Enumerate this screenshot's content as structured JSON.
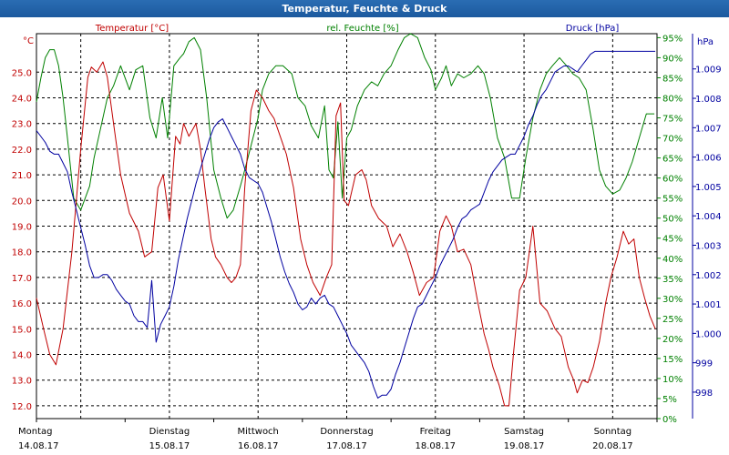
{
  "window_title": "Temperatur, Feuchte & Druck",
  "chart_data": {
    "type": "line",
    "title": "Temperatur, Feuchte & Druck",
    "grid": true,
    "x": {
      "range": [
        "14.08.17 00:00",
        "20.08.17 23:59"
      ],
      "tick_labels": [
        {
          "day": "Montag",
          "date": "14.08.17"
        },
        {
          "day": "Dienstag",
          "date": "15.08.17"
        },
        {
          "day": "Mittwoch",
          "date": "16.08.17"
        },
        {
          "day": "Donnerstag",
          "date": "17.08.17"
        },
        {
          "day": "Freitag",
          "date": "18.08.17"
        },
        {
          "day": "Samstag",
          "date": "19.08.17"
        },
        {
          "day": "Sonntag",
          "date": "20.08.17"
        }
      ]
    },
    "axes": {
      "temperature": {
        "label": "Temperatur [°C]",
        "unit": "°C",
        "range": [
          11.5,
          26.5
        ],
        "ticks": [
          "12.0",
          "13.0",
          "14.0",
          "15.0",
          "16.0",
          "17.0",
          "18.0",
          "19.0",
          "20.0",
          "21.0",
          "22.0",
          "23.0",
          "24.0",
          "25.0"
        ],
        "color": "#c00000"
      },
      "humidity": {
        "label": "rel. Feuchte [%]",
        "unit": "%",
        "range": [
          0,
          96
        ],
        "ticks": [
          "0",
          "5",
          "10",
          "15",
          "20",
          "25",
          "30",
          "35",
          "40",
          "45",
          "50",
          "55",
          "60",
          "65",
          "70",
          "75",
          "80",
          "85",
          "90",
          "95"
        ],
        "tick_suffix": "%",
        "color": "#008000"
      },
      "pressure": {
        "label": "Druck [hPa]",
        "unit": "hPa",
        "range": [
          997.1,
          1010.2
        ],
        "ticks": [
          "998",
          "999",
          "1.000",
          "1.001",
          "1.002",
          "1.003",
          "1.004",
          "1.005",
          "1.006",
          "1.007",
          "1.008",
          "1.009"
        ],
        "color": "#0000a0"
      }
    },
    "series": [
      {
        "name": "Temperatur [°C]",
        "axis": "temperature",
        "color": "#c00000",
        "x_days": [
          0,
          0.08,
          0.15,
          0.22,
          0.3,
          0.4,
          0.5,
          0.58,
          0.62,
          0.68,
          0.75,
          0.8,
          0.87,
          0.95,
          1.05,
          1.15,
          1.22,
          1.3,
          1.37,
          1.43,
          1.5,
          1.57,
          1.62,
          1.66,
          1.72,
          1.8,
          1.85,
          1.9,
          1.97,
          2.02,
          2.08,
          2.15,
          2.2,
          2.25,
          2.3,
          2.35,
          2.42,
          2.48,
          2.55,
          2.62,
          2.68,
          2.75,
          2.82,
          2.9,
          2.98,
          3.05,
          3.12,
          3.2,
          3.27,
          3.33,
          3.38,
          3.43,
          3.47,
          3.52,
          3.6,
          3.67,
          3.72,
          3.78,
          3.86,
          3.95,
          4.02,
          4.1,
          4.18,
          4.25,
          4.32,
          4.4,
          4.48,
          4.55,
          4.62,
          4.68,
          4.75,
          4.82,
          4.9,
          4.98,
          5.05,
          5.1,
          5.15,
          5.22,
          5.28,
          5.33,
          5.38,
          5.45,
          5.52,
          5.6,
          5.68,
          5.76,
          5.85,
          5.92,
          6.0,
          6.06,
          6.1,
          6.16,
          6.22,
          6.28,
          6.35,
          6.42,
          6.48,
          6.55,
          6.62,
          6.68,
          6.74,
          6.8,
          6.86,
          6.92,
          6.98
        ],
        "values": [
          16.2,
          15.0,
          14.0,
          13.6,
          15.0,
          18.0,
          22.0,
          24.8,
          25.2,
          25.0,
          25.4,
          24.8,
          23.0,
          21.0,
          19.5,
          18.8,
          17.8,
          18.0,
          20.5,
          21.0,
          19.2,
          22.5,
          22.2,
          23.0,
          22.5,
          23.0,
          22.0,
          20.5,
          18.5,
          17.8,
          17.5,
          17.0,
          16.8,
          17.0,
          17.5,
          20.5,
          23.5,
          24.3,
          24.0,
          23.5,
          23.2,
          22.5,
          21.8,
          20.5,
          18.5,
          17.5,
          16.8,
          16.3,
          17.0,
          17.5,
          23.3,
          23.8,
          20.0,
          19.8,
          21.0,
          21.2,
          20.8,
          19.8,
          19.3,
          19.0,
          18.2,
          18.7,
          18.0,
          17.2,
          16.3,
          16.8,
          17.0,
          18.8,
          19.4,
          19.0,
          18.0,
          18.1,
          17.5,
          16.0,
          14.8,
          14.2,
          13.5,
          12.8,
          12.0,
          12.0,
          14.0,
          16.5,
          17.0,
          19.0,
          16.0,
          15.7,
          15.0,
          14.7,
          13.5,
          13.0,
          12.5,
          13.0,
          12.9,
          13.5,
          14.5,
          16.0,
          17.0,
          17.8,
          18.8,
          18.3,
          18.5,
          17.0,
          16.2,
          15.5,
          15.0
        ]
      },
      {
        "name": "rel. Feuchte [%]",
        "axis": "humidity",
        "color": "#008000",
        "x_days": [
          0,
          0.05,
          0.1,
          0.15,
          0.2,
          0.25,
          0.3,
          0.35,
          0.42,
          0.5,
          0.55,
          0.6,
          0.65,
          0.72,
          0.8,
          0.87,
          0.95,
          1.05,
          1.12,
          1.2,
          1.28,
          1.35,
          1.42,
          1.48,
          1.55,
          1.62,
          1.66,
          1.72,
          1.78,
          1.85,
          1.92,
          2.0,
          2.08,
          2.15,
          2.22,
          2.3,
          2.35,
          2.42,
          2.5,
          2.55,
          2.62,
          2.7,
          2.78,
          2.88,
          2.95,
          3.03,
          3.1,
          3.18,
          3.25,
          3.3,
          3.35,
          3.4,
          3.45,
          3.5,
          3.55,
          3.62,
          3.7,
          3.78,
          3.85,
          3.92,
          4.0,
          4.08,
          4.15,
          4.22,
          4.3,
          4.38,
          4.45,
          4.5,
          4.57,
          4.62,
          4.68,
          4.75,
          4.82,
          4.9,
          4.98,
          5.05,
          5.12,
          5.2,
          5.28,
          5.36,
          5.45,
          5.52,
          5.6,
          5.68,
          5.75,
          5.82,
          5.9,
          5.98,
          6.05,
          6.12,
          6.2,
          6.28,
          6.35,
          6.42,
          6.5,
          6.58,
          6.65,
          6.72,
          6.8,
          6.88,
          6.97
        ],
        "values": [
          79,
          85,
          90,
          92,
          92,
          88,
          80,
          70,
          55,
          52,
          55,
          58,
          65,
          72,
          80,
          83,
          88,
          82,
          87,
          88,
          75,
          70,
          80,
          70,
          88,
          90,
          91,
          94,
          95,
          92,
          80,
          62,
          55,
          50,
          52,
          58,
          62,
          68,
          75,
          82,
          86,
          88,
          88,
          86,
          80,
          78,
          73,
          70,
          78,
          62,
          60,
          74,
          55,
          70,
          72,
          78,
          82,
          84,
          83,
          86,
          88,
          92,
          95,
          96,
          95,
          90,
          87,
          82,
          85,
          88,
          83,
          86,
          85,
          86,
          88,
          86,
          80,
          70,
          65,
          55,
          55,
          65,
          75,
          82,
          86,
          88,
          90,
          88,
          86,
          85,
          82,
          72,
          62,
          58,
          56,
          57,
          60,
          64,
          70,
          76,
          76
        ]
      },
      {
        "name": "Druck [hPa]",
        "axis": "pressure",
        "color": "#0000a0",
        "x_days": [
          0,
          0.05,
          0.1,
          0.15,
          0.2,
          0.25,
          0.3,
          0.35,
          0.4,
          0.45,
          0.5,
          0.55,
          0.6,
          0.65,
          0.7,
          0.75,
          0.8,
          0.85,
          0.9,
          0.95,
          1.0,
          1.05,
          1.1,
          1.15,
          1.2,
          1.25,
          1.3,
          1.35,
          1.4,
          1.45,
          1.5,
          1.55,
          1.6,
          1.65,
          1.7,
          1.75,
          1.8,
          1.85,
          1.9,
          1.95,
          2.0,
          2.05,
          2.1,
          2.15,
          2.2,
          2.25,
          2.3,
          2.35,
          2.4,
          2.45,
          2.5,
          2.55,
          2.6,
          2.65,
          2.7,
          2.75,
          2.8,
          2.85,
          2.9,
          2.95,
          3.0,
          3.05,
          3.1,
          3.15,
          3.2,
          3.25,
          3.3,
          3.35,
          3.4,
          3.45,
          3.5,
          3.55,
          3.6,
          3.65,
          3.7,
          3.75,
          3.8,
          3.85,
          3.9,
          3.95,
          4.0,
          4.05,
          4.1,
          4.15,
          4.2,
          4.25,
          4.3,
          4.35,
          4.4,
          4.45,
          4.5,
          4.55,
          4.6,
          4.65,
          4.7,
          4.75,
          4.8,
          4.85,
          4.9,
          4.95,
          5.0,
          5.05,
          5.1,
          5.15,
          5.2,
          5.25,
          5.3,
          5.35,
          5.4,
          5.45,
          5.5,
          5.55,
          5.6,
          5.65,
          5.7,
          5.75,
          5.8,
          5.85,
          5.9,
          5.95,
          6.0,
          6.05,
          6.1,
          6.15,
          6.2,
          6.25,
          6.3,
          6.35,
          6.4,
          6.45,
          6.5,
          6.55,
          6.6,
          6.65,
          6.7,
          6.75,
          6.8,
          6.85,
          6.9,
          6.95,
          6.98
        ],
        "values": [
          1006.9,
          1006.7,
          1006.5,
          1006.2,
          1006.1,
          1006.1,
          1005.8,
          1005.5,
          1004.8,
          1004.2,
          1003.6,
          1003.0,
          1002.3,
          1001.9,
          1001.9,
          1002.0,
          1002.0,
          1001.8,
          1001.5,
          1001.3,
          1001.1,
          1001.0,
          1000.6,
          1000.4,
          1000.4,
          1000.2,
          1001.8,
          999.7,
          1000.3,
          1000.6,
          1000.9,
          1001.6,
          1002.5,
          1003.2,
          1003.9,
          1004.5,
          1005.1,
          1005.6,
          1006.1,
          1006.6,
          1007.0,
          1007.2,
          1007.3,
          1007.0,
          1006.7,
          1006.4,
          1006.1,
          1005.6,
          1005.3,
          1005.2,
          1005.1,
          1004.8,
          1004.3,
          1003.8,
          1003.2,
          1002.6,
          1002.1,
          1001.7,
          1001.4,
          1001.0,
          1000.8,
          1000.9,
          1001.2,
          1001.0,
          1001.2,
          1001.3,
          1001.0,
          1000.9,
          1000.6,
          1000.3,
          1000.0,
          999.6,
          999.4,
          999.2,
          999.0,
          998.7,
          998.2,
          997.8,
          997.9,
          997.9,
          998.1,
          998.6,
          999.0,
          999.5,
          1000.0,
          1000.5,
          1000.9,
          1001.0,
          1001.3,
          1001.6,
          1001.9,
          1002.3,
          1002.6,
          1002.9,
          1003.2,
          1003.6,
          1003.9,
          1004.0,
          1004.2,
          1004.3,
          1004.4,
          1004.8,
          1005.2,
          1005.5,
          1005.7,
          1005.9,
          1006.0,
          1006.1,
          1006.1,
          1006.4,
          1006.7,
          1007.1,
          1007.4,
          1007.8,
          1008.1,
          1008.3,
          1008.6,
          1008.9,
          1009.0,
          1009.1,
          1009.1,
          1009.0,
          1008.9,
          1009.1,
          1009.3,
          1009.5,
          1009.6,
          1009.6,
          1009.6,
          1009.6,
          1009.6,
          1009.6,
          1009.6,
          1009.6,
          1009.6,
          1009.6,
          1009.6,
          1009.6,
          1009.6,
          1009.6,
          1009.6
        ]
      }
    ]
  }
}
